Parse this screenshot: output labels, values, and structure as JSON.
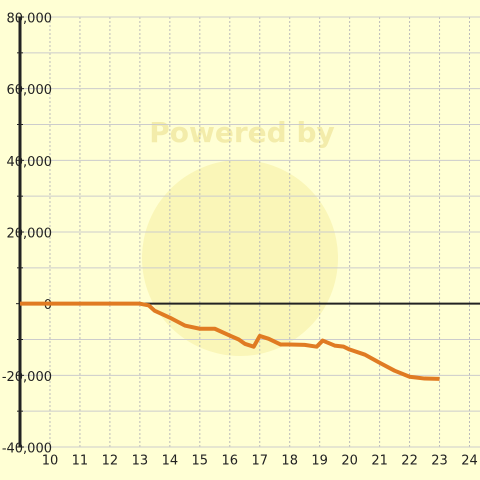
{
  "chart_data": {
    "type": "line",
    "watermark": "Powered by",
    "x": [
      9,
      13,
      13.3,
      13.5,
      14,
      14.5,
      15,
      15.5,
      16,
      16.3,
      16.5,
      16.8,
      17,
      17.3,
      17.7,
      18,
      18.5,
      18.9,
      19.1,
      19.5,
      19.8,
      20,
      20.5,
      21,
      21.5,
      22,
      22.5,
      23
    ],
    "series": [
      {
        "color": "#e07b22",
        "values": [
          0,
          0,
          -500,
          -2000,
          -3900,
          -6100,
          -7000,
          -7000,
          -8900,
          -10000,
          -11200,
          -12000,
          -9000,
          -9800,
          -11400,
          -11400,
          -11500,
          -12000,
          -10300,
          -11700,
          -12000,
          -12800,
          -14200,
          -16500,
          -18700,
          -20400,
          -20900,
          -21000
        ]
      }
    ],
    "xlim": [
      9,
      24.35
    ],
    "xticks": [
      10,
      11,
      12,
      13,
      14,
      15,
      16,
      17,
      18,
      19,
      20,
      21,
      22,
      23,
      24
    ],
    "ylim": [
      -40000,
      80000
    ],
    "yticks": [
      {
        "value": -40000,
        "label": "-40,000"
      },
      {
        "value": -20000,
        "label": "-20,000"
      },
      0,
      {
        "value": 20000,
        "label": "20,000"
      },
      {
        "value": 40000,
        "label": "40,000"
      },
      {
        "value": 60000,
        "label": "60,000"
      },
      {
        "value": 80000,
        "label": "80,000"
      }
    ],
    "minor_yticks": [
      -30000,
      -10000,
      10000,
      30000,
      50000,
      70000
    ],
    "grid": true
  }
}
